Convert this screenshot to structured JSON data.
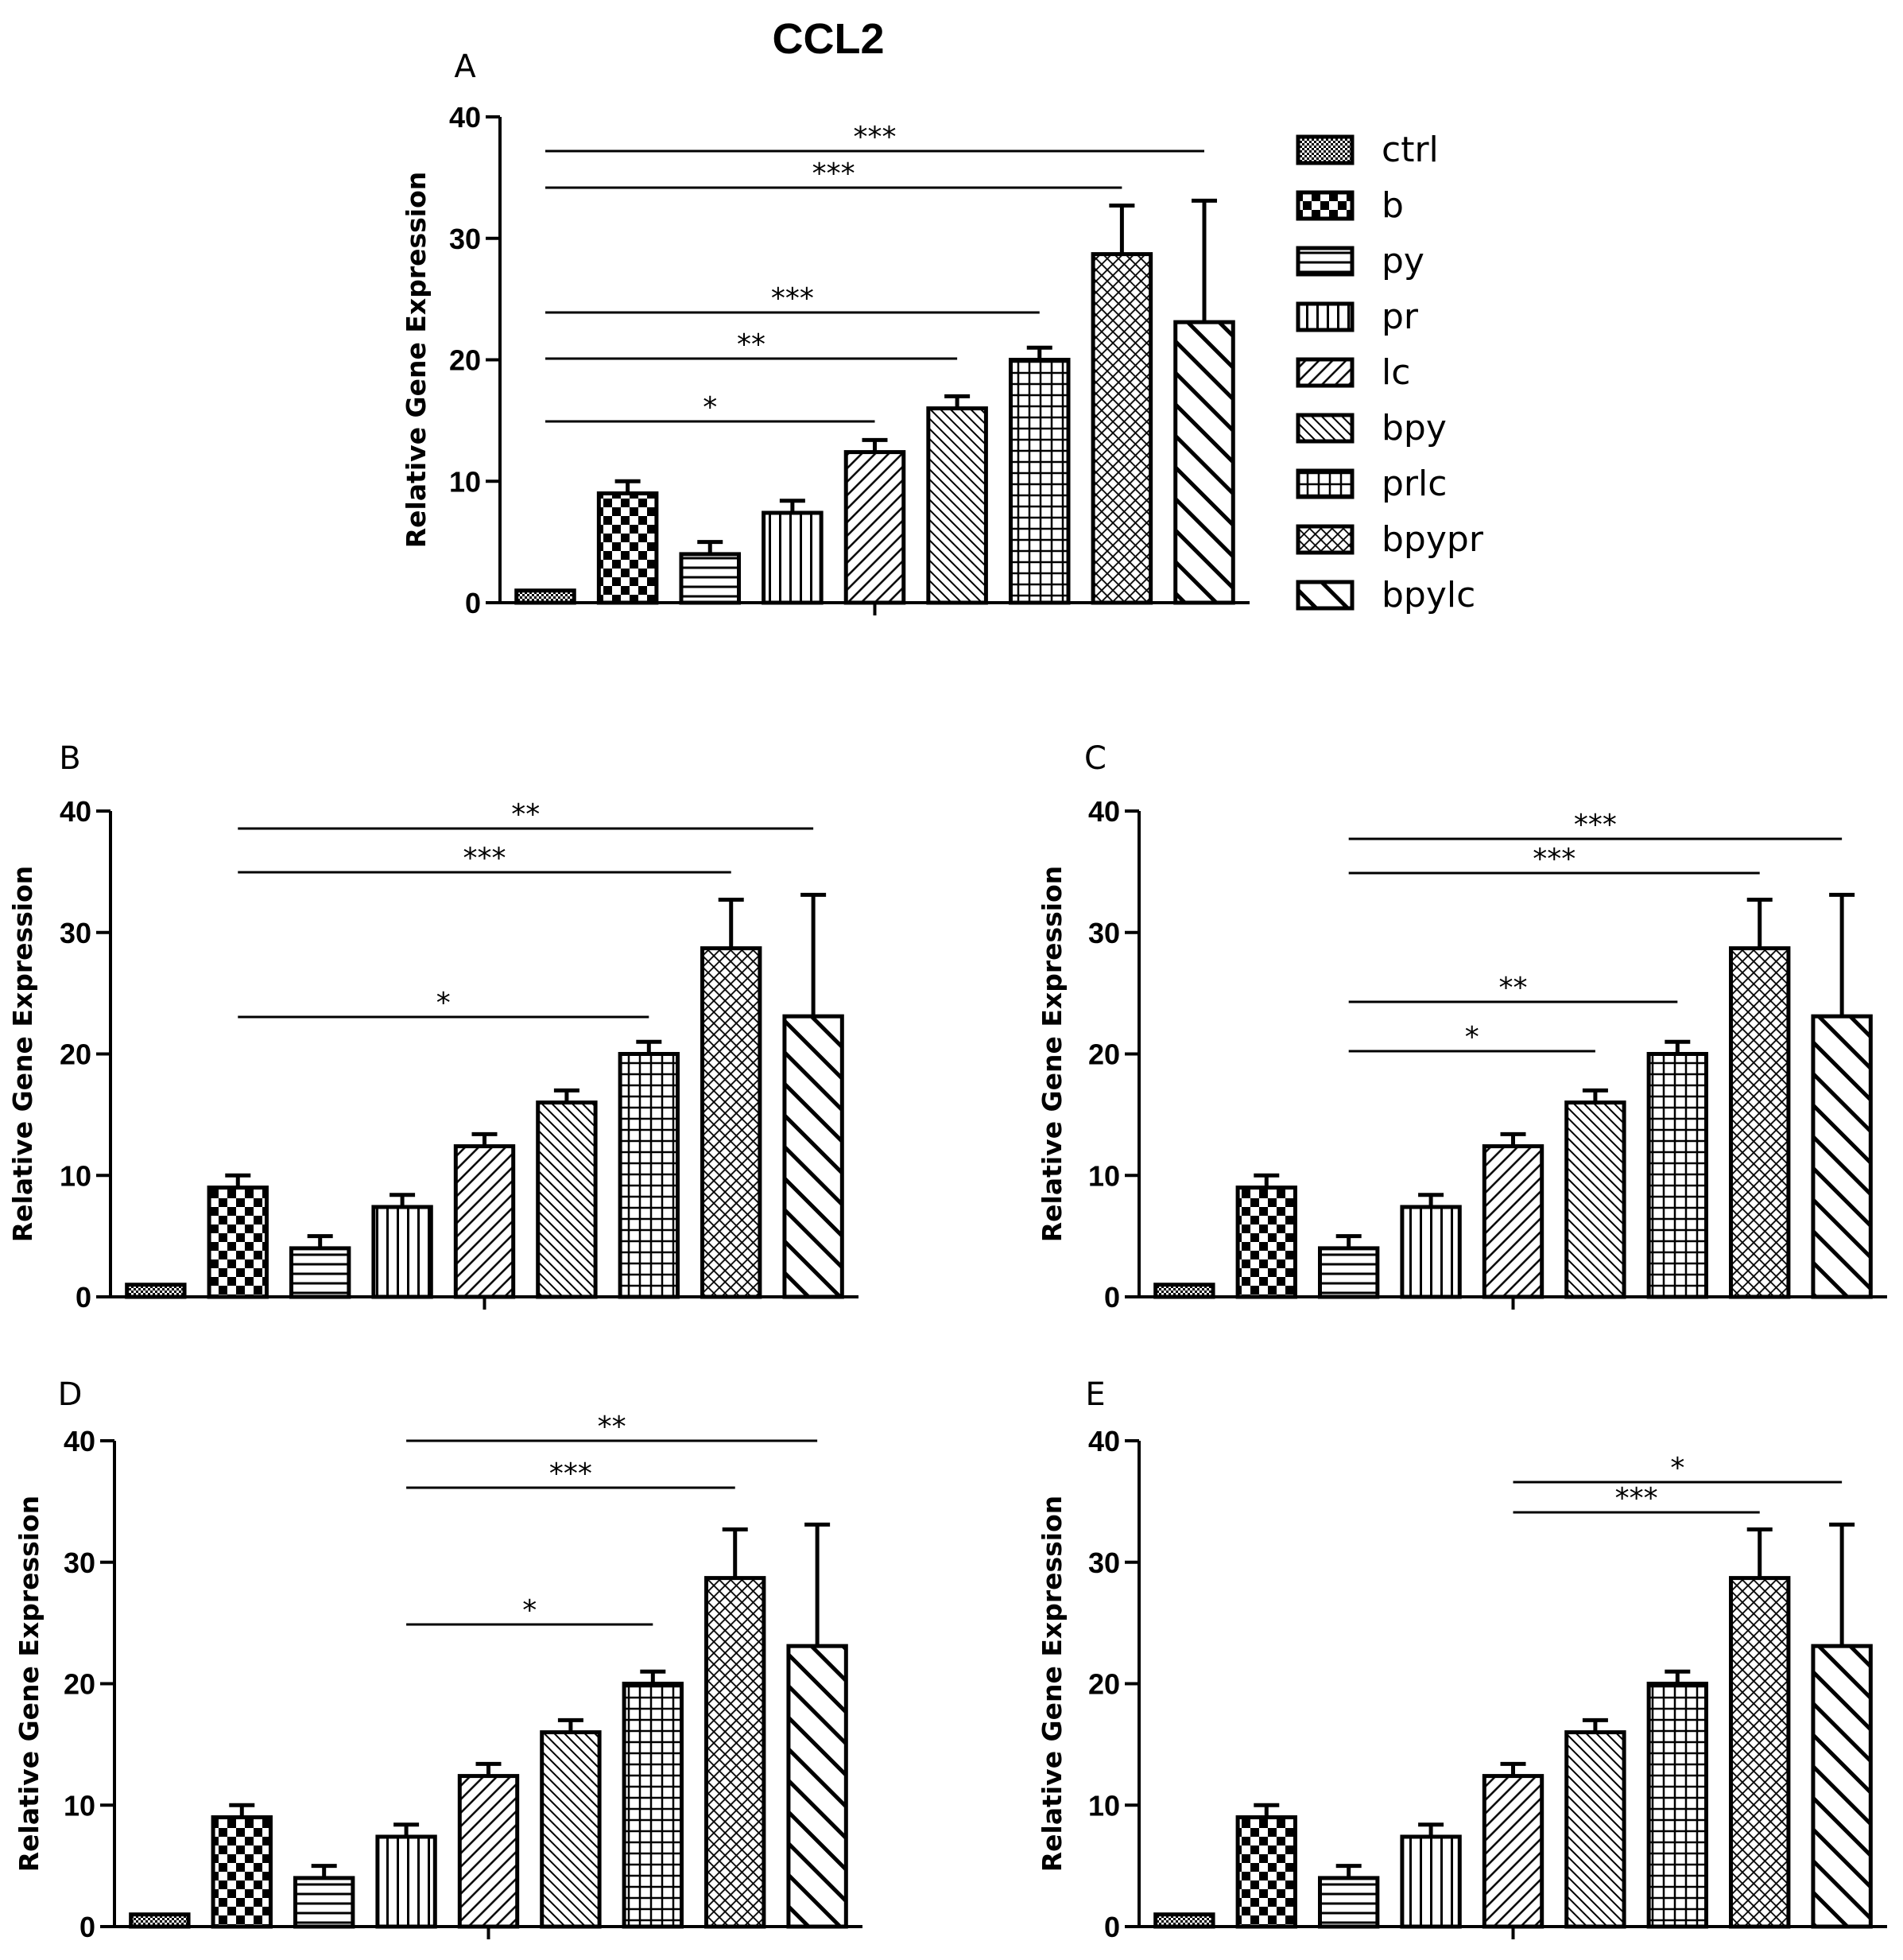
{
  "figure_title": "CCL2",
  "colors": {
    "ink": "#000000",
    "fill": "#ffffff"
  },
  "chart_data": [
    {
      "type": "bar",
      "panel": "A",
      "title": "CCL2",
      "ylabel": "Relative Gene Expression",
      "ylim": [
        0,
        40
      ],
      "yticks": [
        "0",
        "10",
        "20",
        "30",
        "40"
      ],
      "categories": [
        "ctrl",
        "b",
        "py",
        "pr",
        "lc",
        "bpy",
        "prlc",
        "bpypr",
        "bpylc"
      ],
      "patterns": [
        "fine",
        "checker",
        "hlines",
        "vlines",
        "diag",
        "back",
        "grid",
        "cross",
        "wide"
      ],
      "values": [
        1,
        9,
        4,
        7.4,
        12.4,
        16,
        20,
        28.7,
        23.1
      ],
      "errors": [
        0,
        1,
        1,
        1,
        1,
        1,
        1,
        4,
        10
      ],
      "legend": [
        "ctrl",
        "b",
        "py",
        "pr",
        "lc",
        "bpy",
        "prlc",
        "bpypr",
        "bpylc"
      ],
      "legend_position": "right",
      "significance": [
        {
          "from": 0,
          "to": 8,
          "label": "***"
        },
        {
          "from": 0,
          "to": 7,
          "label": "***"
        },
        {
          "from": 0,
          "to": 6,
          "label": "***"
        },
        {
          "from": 0,
          "to": 5,
          "label": "**"
        },
        {
          "from": 0,
          "to": 4,
          "label": "*"
        }
      ]
    },
    {
      "type": "bar",
      "panel": "B",
      "ylabel": "Relative Gene Expression",
      "ylim": [
        0,
        40
      ],
      "yticks": [
        "0",
        "10",
        "20",
        "30",
        "40"
      ],
      "categories": [
        "ctrl",
        "b",
        "py",
        "pr",
        "lc",
        "bpy",
        "prlc",
        "bpypr",
        "bpylc"
      ],
      "patterns": [
        "fine",
        "checker",
        "hlines",
        "vlines",
        "diag",
        "back",
        "grid",
        "cross",
        "wide"
      ],
      "values": [
        1,
        9,
        4,
        7.4,
        12.4,
        16,
        20,
        28.7,
        23.1
      ],
      "errors": [
        0,
        1,
        1,
        1,
        1,
        1,
        1,
        4,
        10
      ],
      "significance": [
        {
          "from": 1,
          "to": 8,
          "label": "**"
        },
        {
          "from": 1,
          "to": 7,
          "label": "***"
        },
        {
          "from": 1,
          "to": 6,
          "label": "*"
        }
      ]
    },
    {
      "type": "bar",
      "panel": "C",
      "ylabel": "Relative Gene Expression",
      "ylim": [
        0,
        40
      ],
      "yticks": [
        "0",
        "10",
        "20",
        "30",
        "40"
      ],
      "categories": [
        "ctrl",
        "b",
        "py",
        "pr",
        "lc",
        "bpy",
        "prlc",
        "bpypr",
        "bpylc"
      ],
      "patterns": [
        "fine",
        "checker",
        "hlines",
        "vlines",
        "diag",
        "back",
        "grid",
        "cross",
        "wide"
      ],
      "values": [
        1,
        9,
        4,
        7.4,
        12.4,
        16,
        20,
        28.7,
        23.1
      ],
      "errors": [
        0,
        1,
        1,
        1,
        1,
        1,
        1,
        4,
        10
      ],
      "significance": [
        {
          "from": 2,
          "to": 8,
          "label": "***"
        },
        {
          "from": 2,
          "to": 7,
          "label": "***"
        },
        {
          "from": 2,
          "to": 6,
          "label": "**"
        },
        {
          "from": 2,
          "to": 5,
          "label": "*"
        }
      ]
    },
    {
      "type": "bar",
      "panel": "D",
      "ylabel": "Relative Gene Expression",
      "ylim": [
        0,
        40
      ],
      "yticks": [
        "0",
        "10",
        "20",
        "30",
        "40"
      ],
      "categories": [
        "ctrl",
        "b",
        "py",
        "pr",
        "lc",
        "bpy",
        "prlc",
        "bpypr",
        "bpylc"
      ],
      "patterns": [
        "fine",
        "checker",
        "hlines",
        "vlines",
        "diag",
        "back",
        "grid",
        "cross",
        "wide"
      ],
      "values": [
        1,
        9,
        4,
        7.4,
        12.4,
        16,
        20,
        28.7,
        23.1
      ],
      "errors": [
        0,
        1,
        1,
        1,
        1,
        1,
        1,
        4,
        10
      ],
      "significance": [
        {
          "from": 3,
          "to": 8,
          "label": "**"
        },
        {
          "from": 3,
          "to": 7,
          "label": "***"
        },
        {
          "from": 3,
          "to": 6,
          "label": "*"
        }
      ]
    },
    {
      "type": "bar",
      "panel": "E",
      "ylabel": "Relative Gene Expression",
      "ylim": [
        0,
        40
      ],
      "yticks": [
        "0",
        "10",
        "20",
        "30",
        "40"
      ],
      "categories": [
        "ctrl",
        "b",
        "py",
        "pr",
        "lc",
        "bpy",
        "prlc",
        "bpypr",
        "bpylc"
      ],
      "patterns": [
        "fine",
        "checker",
        "hlines",
        "vlines",
        "diag",
        "back",
        "grid",
        "cross",
        "wide"
      ],
      "values": [
        1,
        9,
        4,
        7.4,
        12.4,
        16,
        20,
        28.7,
        23.1
      ],
      "errors": [
        0,
        1,
        1,
        1,
        1,
        1,
        1,
        4,
        10
      ],
      "significance": [
        {
          "from": 4,
          "to": 8,
          "label": "*"
        },
        {
          "from": 4,
          "to": 7,
          "label": "***"
        }
      ]
    }
  ]
}
